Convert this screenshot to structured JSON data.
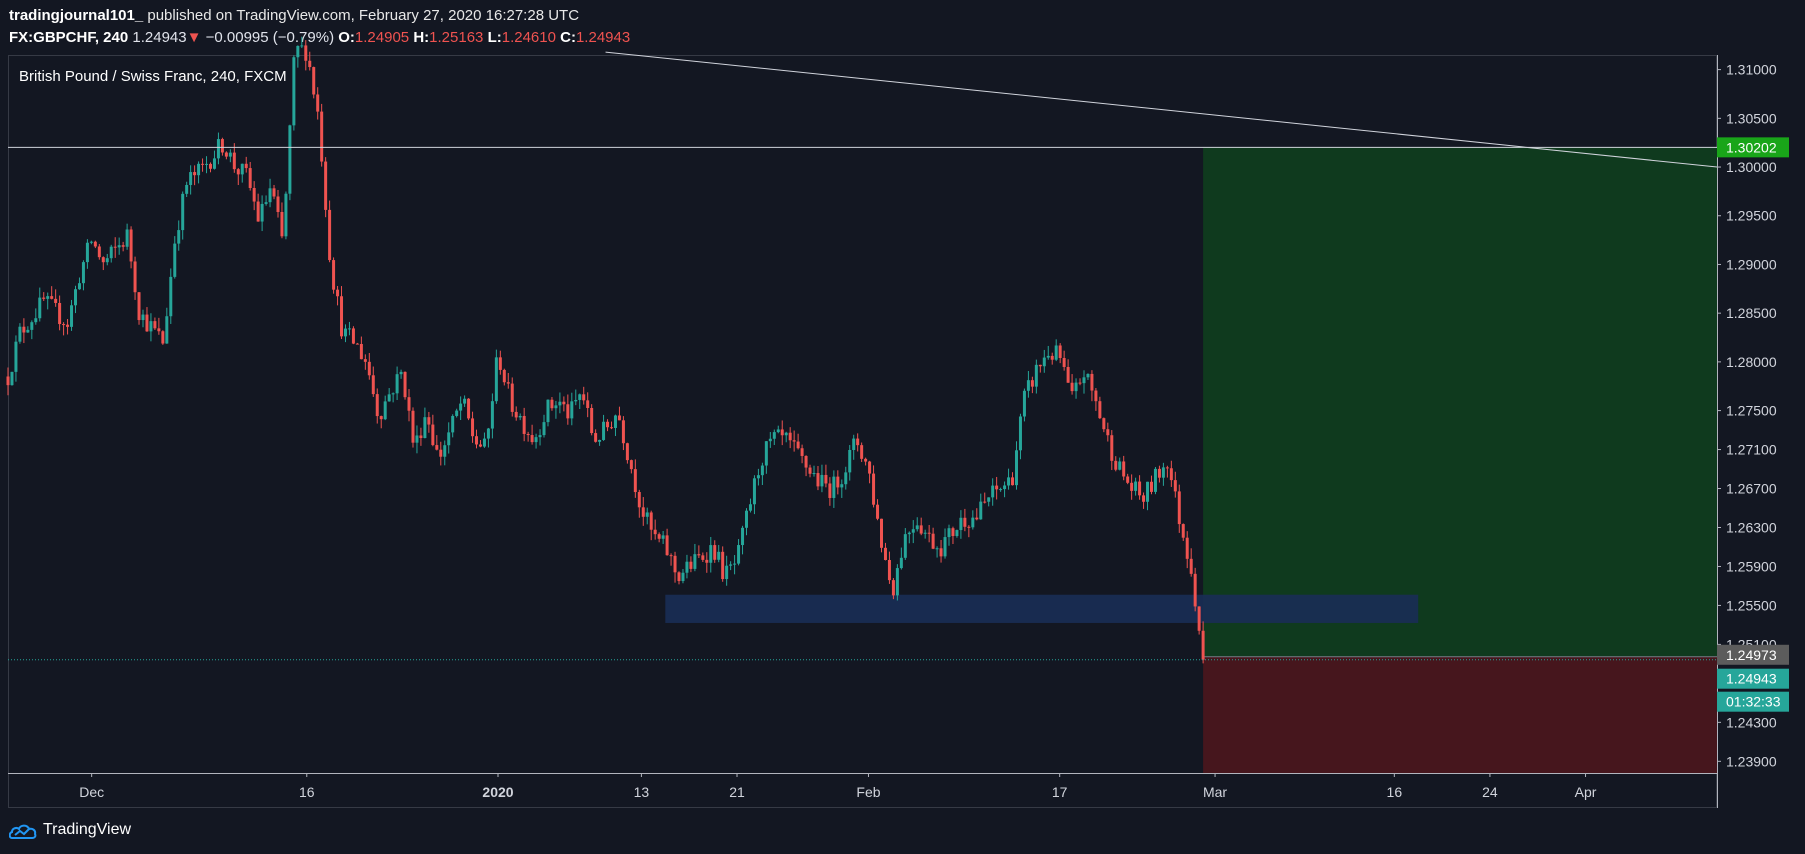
{
  "header": {
    "author": "tradingjournal101_",
    "published_text": "published on TradingView.com, February 27, 2020 16:27:28 UTC",
    "symbol": "FX:GBPCHF, 240",
    "last": "1.24943",
    "change_arrow": "▼",
    "change": "−0.00995 (−0.79%)",
    "open_label": "O:",
    "open": "1.24905",
    "high_label": "H:",
    "high": "1.25163",
    "low_label": "L:",
    "low": "1.24610",
    "close_label": "C:",
    "close": "1.24943"
  },
  "footer": {
    "brand": "TradingView",
    "logo_icon": "tradingview-cloud-icon"
  },
  "colors": {
    "background": "#131722",
    "up": "#26a69a",
    "down": "#ef5350",
    "profit_zone": "#0f3a1e",
    "loss_zone": "#46161d",
    "support_zone": "#1a2e55",
    "target_label": "#19a519",
    "price_label": "#26a69a",
    "entry_label": "#5c5c5c"
  },
  "chart_data": {
    "type": "candlestick",
    "title": "British Pound / Swiss Franc, 240, FXCM",
    "x_ticks": [
      "Dec",
      "16",
      "2020",
      "13",
      "21",
      "Feb",
      "17",
      "Mar",
      "16",
      "24",
      "Apr"
    ],
    "y_ticks": [
      "1.31000",
      "1.30500",
      "1.30000",
      "1.29500",
      "1.29000",
      "1.28500",
      "1.28000",
      "1.27500",
      "1.27100",
      "1.26700",
      "1.26300",
      "1.25900",
      "1.25500",
      "1.25100",
      "1.24300",
      "1.23900"
    ],
    "ylim": [
      1.2378,
      1.3115
    ],
    "x_range": [
      "2019-11-21",
      "2020-04-12"
    ],
    "price_path": [
      [
        "2019-11-21",
        1.2785
      ],
      [
        "2019-11-22",
        1.283
      ],
      [
        "2019-11-24",
        1.2862
      ],
      [
        "2019-11-26",
        1.284
      ],
      [
        "2019-11-27",
        1.289
      ],
      [
        "2019-11-28",
        1.2925
      ],
      [
        "2019-11-29",
        1.29
      ],
      [
        "2019-12-01",
        1.293
      ],
      [
        "2019-12-02",
        1.285
      ],
      [
        "2019-12-03",
        1.2835
      ],
      [
        "2019-12-04",
        1.282
      ],
      [
        "2019-12-05",
        1.293
      ],
      [
        "2019-12-06",
        1.2985
      ],
      [
        "2019-12-07",
        1.2995
      ],
      [
        "2019-12-09",
        1.3025
      ],
      [
        "2019-12-10",
        1.3
      ],
      [
        "2019-12-11",
        1.299
      ],
      [
        "2019-12-12",
        1.2945
      ],
      [
        "2019-12-13",
        1.298
      ],
      [
        "2019-12-14",
        1.292
      ],
      [
        "2019-12-15",
        1.312
      ],
      [
        "2019-12-16",
        1.312
      ],
      [
        "2019-12-17",
        1.305
      ],
      [
        "2019-12-18",
        1.29
      ],
      [
        "2019-12-19",
        1.283
      ],
      [
        "2019-12-20",
        1.282
      ],
      [
        "2019-12-21",
        1.28
      ],
      [
        "2019-12-22",
        1.2745
      ],
      [
        "2019-12-23",
        1.277
      ],
      [
        "2019-12-24",
        1.279
      ],
      [
        "2019-12-25",
        1.271
      ],
      [
        "2019-12-26",
        1.275
      ],
      [
        "2019-12-27",
        1.27
      ],
      [
        "2019-12-28",
        1.273
      ],
      [
        "2019-12-29",
        1.276
      ],
      [
        "2019-12-30",
        1.272
      ],
      [
        "2019-12-31",
        1.271
      ],
      [
        "2020-01-01",
        1.281
      ],
      [
        "2020-01-02",
        1.276
      ],
      [
        "2020-01-03",
        1.274
      ],
      [
        "2020-01-04",
        1.272
      ],
      [
        "2020-01-05",
        1.275
      ],
      [
        "2020-01-06",
        1.276
      ],
      [
        "2020-01-07",
        1.2745
      ],
      [
        "2020-01-08",
        1.277
      ],
      [
        "2020-01-09",
        1.272
      ],
      [
        "2020-01-10",
        1.273
      ],
      [
        "2020-01-11",
        1.275
      ],
      [
        "2020-01-12",
        1.27
      ],
      [
        "2020-01-13",
        1.265
      ],
      [
        "2020-01-14",
        1.262
      ],
      [
        "2020-01-15",
        1.261
      ],
      [
        "2020-01-16",
        1.258
      ],
      [
        "2020-01-17",
        1.259
      ],
      [
        "2020-01-18",
        1.26
      ],
      [
        "2020-01-19",
        1.261
      ],
      [
        "2020-01-20",
        1.258
      ],
      [
        "2020-01-21",
        1.2595
      ],
      [
        "2020-01-22",
        1.265
      ],
      [
        "2020-01-23",
        1.27
      ],
      [
        "2020-01-24",
        1.272
      ],
      [
        "2020-01-25",
        1.272
      ],
      [
        "2020-01-26",
        1.2705
      ],
      [
        "2020-01-27",
        1.269
      ],
      [
        "2020-01-28",
        1.2675
      ],
      [
        "2020-01-29",
        1.267
      ],
      [
        "2020-01-30",
        1.269
      ],
      [
        "2020-01-31",
        1.272
      ],
      [
        "2020-02-01",
        1.269
      ],
      [
        "2020-02-02",
        1.262
      ],
      [
        "2020-02-03",
        1.2565
      ],
      [
        "2020-02-04",
        1.262
      ],
      [
        "2020-02-05",
        1.264
      ],
      [
        "2020-02-06",
        1.262
      ],
      [
        "2020-02-07",
        1.261
      ],
      [
        "2020-02-08",
        1.2625
      ],
      [
        "2020-02-09",
        1.264
      ],
      [
        "2020-02-10",
        1.264
      ],
      [
        "2020-02-11",
        1.266
      ],
      [
        "2020-02-12",
        1.267
      ],
      [
        "2020-02-13",
        1.268
      ],
      [
        "2020-02-14",
        1.276
      ],
      [
        "2020-02-15",
        1.279
      ],
      [
        "2020-02-16",
        1.281
      ],
      [
        "2020-02-17",
        1.2805
      ],
      [
        "2020-02-18",
        1.276
      ],
      [
        "2020-02-19",
        1.279
      ],
      [
        "2020-02-20",
        1.276
      ],
      [
        "2020-02-21",
        1.272
      ],
      [
        "2020-02-22",
        1.269
      ],
      [
        "2020-02-23",
        1.267
      ],
      [
        "2020-02-24",
        1.266
      ],
      [
        "2020-02-25",
        1.268
      ],
      [
        "2020-02-26",
        1.27
      ],
      [
        "2020-02-27",
        1.264
      ],
      [
        "2020-02-28",
        1.259
      ],
      [
        "2020-02-29",
        1.2495
      ]
    ],
    "candle_count": 302,
    "last_price": 1.24943,
    "last_price_label": "1.24943",
    "countdown": "01:32:33",
    "horizontal_line": {
      "price": 1.30202,
      "label": "1.30202"
    },
    "trend_line": {
      "start": [
        "2020-01-10",
        1.3118
      ],
      "end": [
        "2020-04-12",
        1.3
      ]
    },
    "support_zone": {
      "from": "2020-01-15",
      "to": "2020-03-18",
      "price_low": 1.2532,
      "price_high": 1.2561
    },
    "long_position": {
      "from": "2020-02-29",
      "to": "2020-04-12",
      "entry": 1.24973,
      "entry_label": "1.24973",
      "target": 1.30202,
      "stop": 1.2378
    }
  }
}
